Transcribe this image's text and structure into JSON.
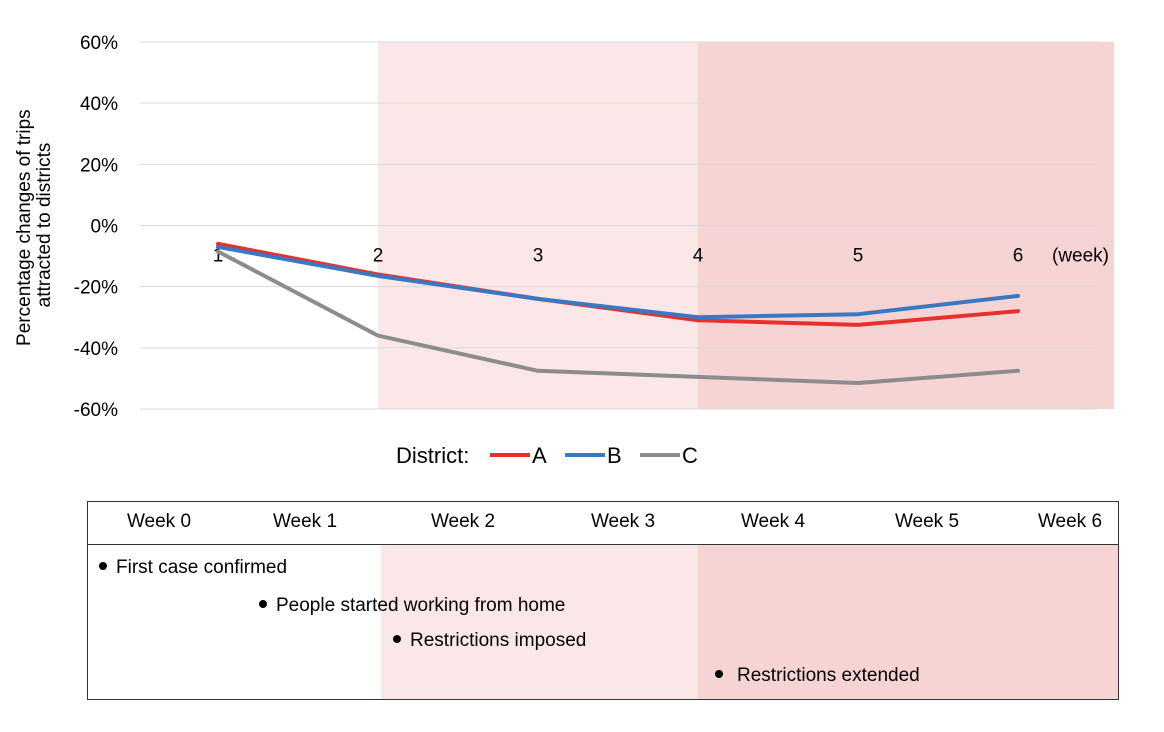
{
  "chart_data": {
    "type": "line",
    "ylabel": "Percentage changes of trips attracted to districts",
    "x_unit_label": "(week)",
    "x": [
      1,
      2,
      3,
      4,
      5,
      6
    ],
    "x_tick_labels": [
      "1",
      "2",
      "3",
      "4",
      "5",
      "6"
    ],
    "y_tick_labels": [
      "60%",
      "40%",
      "20%",
      "0%",
      "-20%",
      "-40%",
      "-60%"
    ],
    "ylim": [
      -60,
      60
    ],
    "y_ticks": [
      60,
      40,
      20,
      0,
      -20,
      -40,
      -60
    ],
    "grid": true,
    "legend_title": "District:",
    "legend_position": "bottom",
    "shaded_periods": [
      {
        "from": 2,
        "to": 4,
        "color": "#fbe7e7"
      },
      {
        "from": 4,
        "to": 6.6,
        "color": "#f6d4d4"
      }
    ],
    "series": [
      {
        "name": "A",
        "color": "#e8312c",
        "values": [
          -6,
          -16,
          -24,
          -31,
          -32.5,
          -28
        ]
      },
      {
        "name": "B",
        "color": "#3a78c1",
        "values": [
          -7,
          -16.5,
          -24,
          -30,
          -29,
          -23
        ]
      },
      {
        "name": "C",
        "color": "#8c8c8c",
        "values": [
          -8.5,
          -36,
          -47.5,
          -49.5,
          -51.5,
          -47.5
        ]
      }
    ]
  },
  "timeline": {
    "weeks": [
      "Week 0",
      "Week 1",
      "Week 2",
      "Week 3",
      "Week 4",
      "Week 5",
      "Week 6"
    ],
    "events": [
      "First case confirmed",
      "People started working from home",
      "Restrictions imposed",
      "Restrictions extended"
    ]
  }
}
